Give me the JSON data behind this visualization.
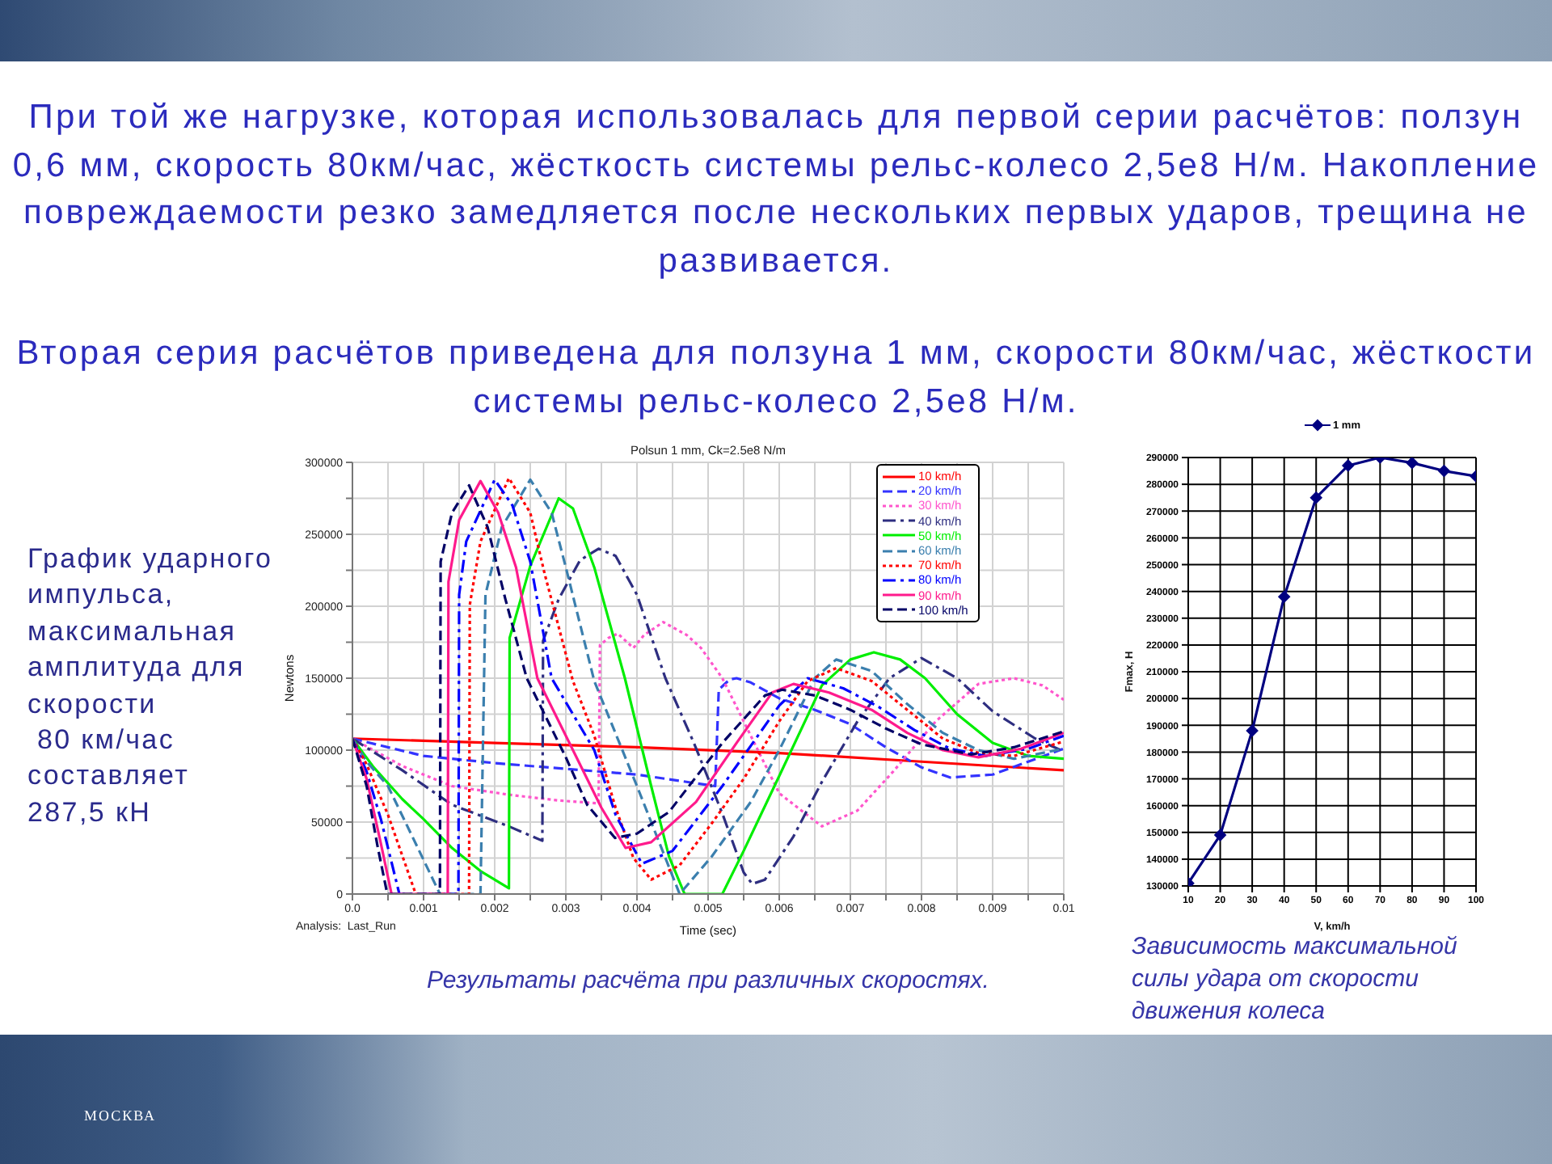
{
  "chart_data": [
    {
      "type": "other",
      "annotations": [
        "При той же нагрузке, которая использовалась для первой серии расчётов: ползун 0,6 мм, скорость 80км/час, жёсткость системы рельс-колесо 2,5е8 Н/м. Накопление повреждаемости резко замедляется после нескольких первых ударов, трещина не развивается.",
        "Вторая серия расчётов приведена для ползуна 1 мм, скорости 80км/час, жёсткости системы рельс-колесо 2,5е8 Н/м.",
        "МОСКВА"
      ]
    },
    {
      "type": "line",
      "title": "Polsun 1 mm, Ck=2.5e8 N/m",
      "xlabel": "Time (sec)",
      "ylabel": "Newtons",
      "xlim": [
        0,
        0.01
      ],
      "xticks": [
        {
          "value": 0,
          "label": "0.0"
        },
        {
          "value": 0.0005,
          "label": null
        },
        0.001,
        {
          "value": 0.0015,
          "label": null
        },
        0.002,
        {
          "value": 0.0025,
          "label": null
        },
        0.003,
        {
          "value": 0.0035,
          "label": null
        },
        0.004,
        {
          "value": 0.0045,
          "label": null
        },
        0.005,
        {
          "value": 0.0055,
          "label": null
        },
        0.006,
        {
          "value": 0.0065,
          "label": null
        },
        0.007,
        {
          "value": 0.0075,
          "label": null
        },
        0.008,
        {
          "value": 0.0085,
          "label": null
        },
        0.009,
        {
          "value": 0.0095,
          "label": null
        },
        0.01
      ],
      "ylim": [
        0,
        300000
      ],
      "yticks": [
        0,
        {
          "value": 25000,
          "label": null
        },
        50000,
        {
          "value": 75000,
          "label": null
        },
        100000,
        {
          "value": 125000,
          "label": null
        },
        150000,
        {
          "value": 175000,
          "label": null
        },
        200000,
        {
          "value": 225000,
          "label": null
        },
        250000,
        {
          "value": 275000,
          "label": null
        },
        300000
      ],
      "grid": true,
      "legend": "top right",
      "marker": "none",
      "series": [
        {
          "name": "10 km/h",
          "color": "#ff0000",
          "line_style": "solid",
          "x": [
            0,
            0.002,
            0.004,
            0.006,
            0.008,
            0.01
          ],
          "values": [
            108000,
            105000,
            102000,
            98000,
            92000,
            86000
          ]
        },
        {
          "name": "20 km/h",
          "color": "#3333ff",
          "line_style": "dashed",
          "x": [
            0,
            0.001,
            0.002,
            0.003,
            0.004,
            0.0051,
            0.00515,
            0.0053,
            0.0054,
            0.0056,
            0.006,
            0.0065,
            0.007,
            0.0075,
            0.008,
            0.0084,
            0.009,
            0.0095,
            0.01
          ],
          "values": [
            108000,
            96000,
            91000,
            87000,
            83000,
            75000,
            142000,
            149000,
            150000,
            147000,
            136000,
            128000,
            118000,
            102000,
            88000,
            81000,
            83000,
            92000,
            101000
          ]
        },
        {
          "name": "30 km/h",
          "color": "#ff55cc",
          "line_style": "dotted",
          "x": [
            0,
            0.0007,
            0.0014,
            0.0022,
            0.0029,
            0.00346,
            0.00348,
            0.0036,
            0.00373,
            0.00395,
            0.0041,
            0.00437,
            0.0047,
            0.0049,
            0.0052,
            0.0056,
            0.006,
            0.0066,
            0.0071,
            0.0076,
            0.0082,
            0.0088,
            0.0093,
            0.0097,
            0.01
          ],
          "values": [
            108000,
            89000,
            75000,
            69000,
            65000,
            63000,
            173000,
            178000,
            181000,
            171000,
            180000,
            189000,
            180000,
            171000,
            150000,
            110000,
            70000,
            47000,
            58000,
            85000,
            120000,
            146000,
            150000,
            145000,
            135000
          ]
        },
        {
          "name": "40 km/h",
          "color": "#2e2e80",
          "line_style": "dashdot",
          "x": [
            0,
            0.0007,
            0.0014,
            0.0022,
            0.00267,
            0.00268,
            0.0029,
            0.0032,
            0.00346,
            0.0037,
            0.004,
            0.0044,
            0.0048,
            0.0052,
            0.0055,
            0.00562,
            0.0058,
            0.0062,
            0.0066,
            0.0071,
            0.00755,
            0.008,
            0.0085,
            0.009,
            0.0096,
            0.01
          ],
          "values": [
            108000,
            86000,
            62000,
            47000,
            37000,
            176000,
            205000,
            232000,
            240000,
            235000,
            208000,
            150000,
            105000,
            56000,
            15000,
            7000,
            10000,
            40000,
            78000,
            120000,
            150000,
            164000,
            150000,
            127000,
            108000,
            99000
          ]
        },
        {
          "name": "50 km/h",
          "color": "#00ee00",
          "line_style": "solid",
          "x": [
            0,
            0.0003,
            0.0007,
            0.001,
            0.0014,
            0.0018,
            0.0022,
            0.00221,
            0.0025,
            0.0029,
            0.0031,
            0.0034,
            0.00383,
            0.0042,
            0.00445,
            0.00467,
            0.0052,
            0.0055,
            0.006,
            0.0066,
            0.007,
            0.00733,
            0.0077,
            0.00805,
            0.0085,
            0.009,
            0.0095,
            0.01
          ],
          "values": [
            108000,
            88000,
            66000,
            52000,
            32000,
            16000,
            4000,
            178000,
            228000,
            275000,
            268000,
            227000,
            150000,
            75000,
            26000,
            0,
            0,
            30000,
            82000,
            145000,
            163000,
            168000,
            163000,
            150000,
            125000,
            105000,
            96000,
            94000
          ]
        },
        {
          "name": "60 km/h",
          "color": "#3b7fae",
          "line_style": "dashed",
          "x": [
            0,
            0.0002,
            0.0005,
            0.0009,
            0.00123,
            0.0018,
            0.00187,
            0.0021,
            0.0025,
            0.0028,
            0.003,
            0.0034,
            0.004,
            0.0044,
            0.0046,
            0.00505,
            0.0056,
            0.006,
            0.0065,
            0.0068,
            0.0073,
            0.0078,
            0.0083,
            0.0088,
            0.0093,
            0.01
          ],
          "values": [
            108000,
            92000,
            75000,
            34000,
            0,
            0,
            208000,
            255000,
            288000,
            265000,
            227000,
            148000,
            75000,
            25000,
            0,
            26000,
            64000,
            100000,
            150000,
            163000,
            155000,
            132000,
            112000,
            100000,
            94000,
            101000
          ]
        },
        {
          "name": "70 km/h",
          "color": "#ff0000",
          "line_style": "dotted",
          "x": [
            0,
            0.0002,
            0.0005,
            0.00089,
            0.00164,
            0.00165,
            0.0018,
            0.0022,
            0.0025,
            0.0027,
            0.0031,
            0.0034,
            0.0037,
            0.00395,
            0.0042,
            0.0046,
            0.00505,
            0.0055,
            0.006,
            0.0064,
            0.0068,
            0.0073,
            0.0078,
            0.0083,
            0.0088,
            0.0093,
            0.01
          ],
          "values": [
            108000,
            90000,
            55000,
            0,
            0,
            201000,
            245000,
            289000,
            265000,
            223000,
            148000,
            110000,
            60000,
            25000,
            10000,
            20000,
            49000,
            80000,
            120000,
            148000,
            157000,
            148000,
            128000,
            108000,
            98000,
            96000,
            106000
          ]
        },
        {
          "name": "80 km/h",
          "color": "#0000ff",
          "line_style": "dashdot",
          "x": [
            0,
            0.0002,
            0.0004,
            0.00066,
            0.00149,
            0.0015,
            0.0016,
            0.002,
            0.00225,
            0.0025,
            0.0028,
            0.0034,
            0.0037,
            0.00407,
            0.0045,
            0.0052,
            0.006,
            0.0064,
            0.0069,
            0.0074,
            0.0079,
            0.0084,
            0.0089,
            0.0095,
            0.01
          ],
          "values": [
            108000,
            85000,
            52000,
            0,
            0,
            208000,
            245000,
            288000,
            270000,
            231000,
            150000,
            100000,
            55000,
            21000,
            30000,
            75000,
            131000,
            150000,
            143000,
            130000,
            114000,
            101000,
            96000,
            101000,
            110000
          ]
        },
        {
          "name": "90 km/h",
          "color": "#ff1a8c",
          "line_style": "solid",
          "x": [
            0,
            0.0002,
            0.0004,
            0.00055,
            0.00134,
            0.00135,
            0.0015,
            0.0018,
            0.00205,
            0.0023,
            0.0026,
            0.0031,
            0.0035,
            0.00384,
            0.0042,
            0.00483,
            0.0054,
            0.0059,
            0.0062,
            0.0067,
            0.0073,
            0.0078,
            0.0083,
            0.0088,
            0.0094,
            0.01
          ],
          "values": [
            108000,
            80000,
            35000,
            0,
            0,
            217000,
            260000,
            287000,
            265000,
            227000,
            150000,
            100000,
            60000,
            32000,
            36000,
            64000,
            105000,
            140000,
            146000,
            140000,
            128000,
            112000,
            100000,
            95000,
            101000,
            112000
          ]
        },
        {
          "name": "100 km/h",
          "color": "#000066",
          "line_style": "dashed",
          "x": [
            0,
            0.0002,
            0.00035,
            0.00049,
            0.00123,
            0.00124,
            0.0014,
            0.00164,
            0.0019,
            0.00215,
            0.00245,
            0.003,
            0.0033,
            0.00369,
            0.004,
            0.00445,
            0.0052,
            0.0058,
            0.00604,
            0.0065,
            0.007,
            0.0075,
            0.008,
            0.0087,
            0.0093,
            0.01
          ],
          "values": [
            108000,
            75000,
            34000,
            0,
            0,
            231000,
            265000,
            284000,
            255000,
            205000,
            150000,
            95000,
            62000,
            39000,
            42000,
            57000,
            105000,
            138000,
            142000,
            138000,
            128000,
            115000,
            104000,
            97000,
            102000,
            113000
          ]
        }
      ],
      "annotations": [
        "Analysis:  Last_Run",
        "График ударного импульса, максимальная амплитуда для скорости\n 80 км/час составляет 287,5 кН",
        "Результаты расчёта при различных скоростях."
      ]
    },
    {
      "type": "line",
      "xlabel": "V, km/h",
      "ylabel": "Fmax, H",
      "x": [
        10,
        20,
        30,
        40,
        50,
        60,
        70,
        80,
        90,
        100
      ],
      "xlim": [
        10,
        100
      ],
      "xticks": [
        10,
        20,
        30,
        40,
        50,
        60,
        70,
        80,
        90,
        100
      ],
      "ylim": [
        130000,
        290000
      ],
      "yticks": [
        130000,
        140000,
        150000,
        160000,
        170000,
        180000,
        190000,
        200000,
        210000,
        220000,
        230000,
        240000,
        250000,
        260000,
        270000,
        280000,
        290000
      ],
      "grid": true,
      "legend": "top",
      "marker": "diamond",
      "series": [
        {
          "name": "1 mm",
          "color": "#000080",
          "values": [
            131000,
            149000,
            188000,
            238000,
            275000,
            287000,
            290000,
            288000,
            285000,
            283000
          ]
        }
      ],
      "annotations": [
        "Зависимость максимальной силы удара от скорости движения колеса"
      ]
    }
  ]
}
